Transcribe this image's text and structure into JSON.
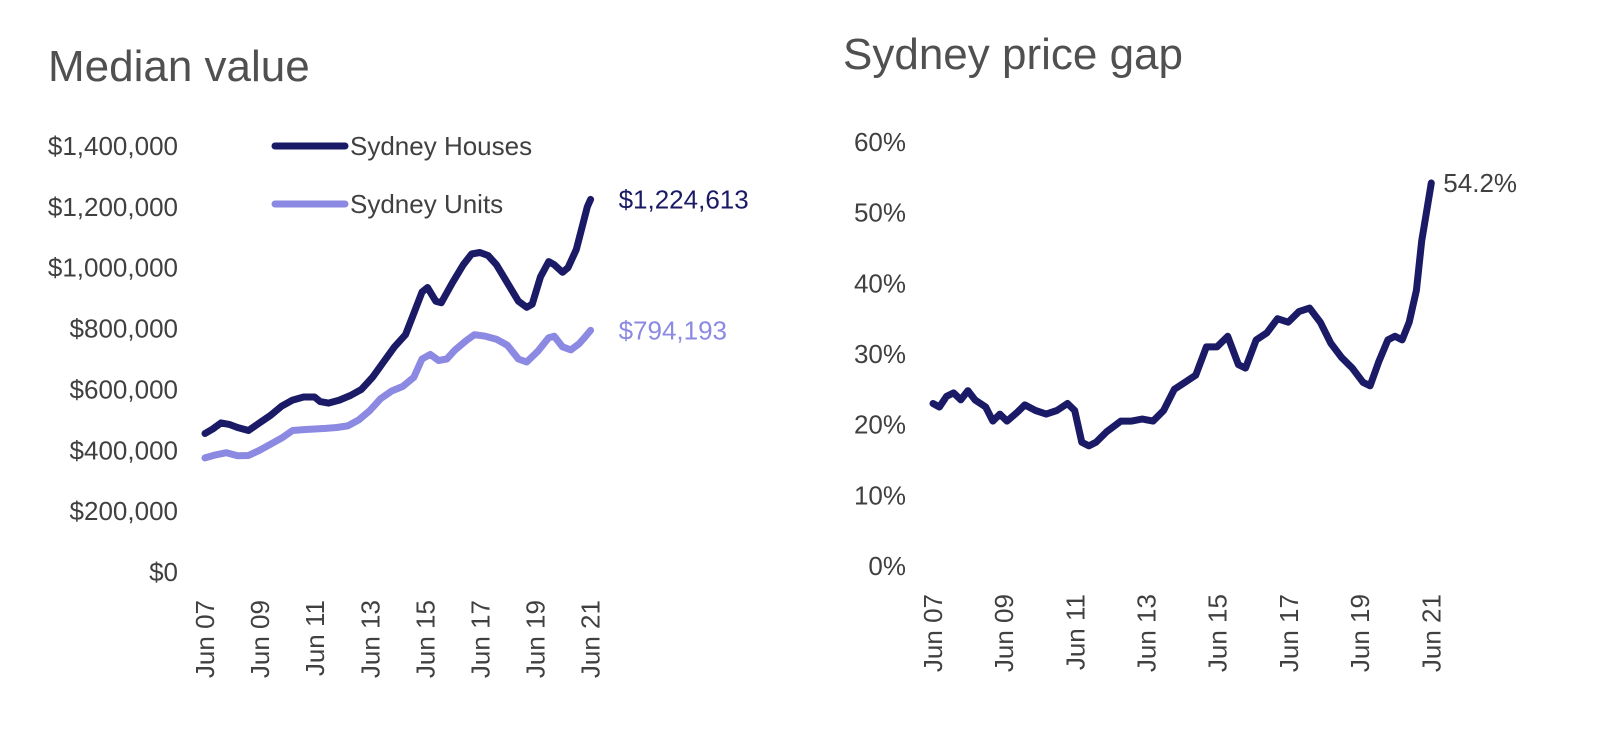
{
  "colors": {
    "houses": "#1a1a66",
    "units": "#8b89e2",
    "gap": "#1a1a66",
    "text": "#404040"
  },
  "chart_data": [
    {
      "type": "line",
      "title": "Median value",
      "ylim": [
        0,
        1400000
      ],
      "yticks": [
        {
          "value": 0,
          "label": "$0"
        },
        {
          "value": 200000,
          "label": "$200,000"
        },
        {
          "value": 400000,
          "label": "$400,000"
        },
        {
          "value": 600000,
          "label": "$600,000"
        },
        {
          "value": 800000,
          "label": "$800,000"
        },
        {
          "value": 1000000,
          "label": "$1,000,000"
        },
        {
          "value": 1200000,
          "label": "$1,200,000"
        },
        {
          "value": 1400000,
          "label": "$1,400,000"
        }
      ],
      "xlim": [
        2007.42,
        2021.58
      ],
      "xticks": [
        {
          "value": 2007.42,
          "label": "Jun 07"
        },
        {
          "value": 2009.42,
          "label": "Jun 09"
        },
        {
          "value": 2011.42,
          "label": "Jun 11"
        },
        {
          "value": 2013.42,
          "label": "Jun 13"
        },
        {
          "value": 2015.42,
          "label": "Jun 15"
        },
        {
          "value": 2017.42,
          "label": "Jun 17"
        },
        {
          "value": 2019.42,
          "label": "Jun 19"
        },
        {
          "value": 2021.42,
          "label": "Jun 21"
        }
      ],
      "legend": "top-center",
      "grid": false,
      "series": [
        {
          "name": "Sydney Houses",
          "color": "#1a1a66",
          "end_label": "$1,224,613",
          "points": [
            [
              2007.42,
              455000
            ],
            [
              2007.7,
              470000
            ],
            [
              2008.0,
              490000
            ],
            [
              2008.3,
              485000
            ],
            [
              2008.6,
              475000
            ],
            [
              2009.0,
              465000
            ],
            [
              2009.4,
              490000
            ],
            [
              2009.8,
              515000
            ],
            [
              2010.2,
              545000
            ],
            [
              2010.6,
              565000
            ],
            [
              2011.0,
              575000
            ],
            [
              2011.4,
              575000
            ],
            [
              2011.6,
              560000
            ],
            [
              2011.9,
              555000
            ],
            [
              2012.3,
              565000
            ],
            [
              2012.7,
              580000
            ],
            [
              2013.1,
              600000
            ],
            [
              2013.5,
              640000
            ],
            [
              2013.9,
              690000
            ],
            [
              2014.3,
              740000
            ],
            [
              2014.7,
              780000
            ],
            [
              2015.0,
              850000
            ],
            [
              2015.3,
              920000
            ],
            [
              2015.5,
              935000
            ],
            [
              2015.8,
              890000
            ],
            [
              2016.0,
              885000
            ],
            [
              2016.4,
              950000
            ],
            [
              2016.8,
              1010000
            ],
            [
              2017.1,
              1045000
            ],
            [
              2017.4,
              1050000
            ],
            [
              2017.7,
              1040000
            ],
            [
              2018.0,
              1010000
            ],
            [
              2018.4,
              950000
            ],
            [
              2018.8,
              890000
            ],
            [
              2019.1,
              870000
            ],
            [
              2019.3,
              880000
            ],
            [
              2019.6,
              970000
            ],
            [
              2019.9,
              1020000
            ],
            [
              2020.1,
              1010000
            ],
            [
              2020.4,
              985000
            ],
            [
              2020.6,
              1000000
            ],
            [
              2020.9,
              1060000
            ],
            [
              2021.1,
              1130000
            ],
            [
              2021.3,
              1200000
            ],
            [
              2021.42,
              1224613
            ]
          ]
        },
        {
          "name": "Sydney Units",
          "color": "#8b89e2",
          "end_label": "$794,193",
          "points": [
            [
              2007.42,
              375000
            ],
            [
              2007.8,
              385000
            ],
            [
              2008.2,
              392000
            ],
            [
              2008.6,
              382000
            ],
            [
              2009.0,
              383000
            ],
            [
              2009.4,
              400000
            ],
            [
              2009.8,
              420000
            ],
            [
              2010.2,
              440000
            ],
            [
              2010.6,
              465000
            ],
            [
              2011.0,
              468000
            ],
            [
              2011.4,
              470000
            ],
            [
              2011.8,
              472000
            ],
            [
              2012.2,
              475000
            ],
            [
              2012.6,
              480000
            ],
            [
              2013.0,
              500000
            ],
            [
              2013.4,
              530000
            ],
            [
              2013.8,
              570000
            ],
            [
              2014.2,
              595000
            ],
            [
              2014.6,
              610000
            ],
            [
              2015.0,
              640000
            ],
            [
              2015.3,
              700000
            ],
            [
              2015.6,
              715000
            ],
            [
              2015.9,
              695000
            ],
            [
              2016.2,
              700000
            ],
            [
              2016.5,
              730000
            ],
            [
              2016.9,
              760000
            ],
            [
              2017.2,
              780000
            ],
            [
              2017.6,
              775000
            ],
            [
              2018.0,
              765000
            ],
            [
              2018.4,
              745000
            ],
            [
              2018.8,
              700000
            ],
            [
              2019.1,
              690000
            ],
            [
              2019.5,
              725000
            ],
            [
              2019.9,
              770000
            ],
            [
              2020.1,
              775000
            ],
            [
              2020.4,
              740000
            ],
            [
              2020.7,
              730000
            ],
            [
              2021.0,
              750000
            ],
            [
              2021.2,
              770000
            ],
            [
              2021.42,
              794193
            ]
          ]
        }
      ]
    },
    {
      "type": "line",
      "title": "Sydney price gap",
      "ylim": [
        0,
        60
      ],
      "yticks": [
        {
          "value": 0,
          "label": "0%"
        },
        {
          "value": 10,
          "label": "10%"
        },
        {
          "value": 20,
          "label": "20%"
        },
        {
          "value": 30,
          "label": "30%"
        },
        {
          "value": 40,
          "label": "40%"
        },
        {
          "value": 50,
          "label": "50%"
        },
        {
          "value": 60,
          "label": "60%"
        }
      ],
      "xlim": [
        2007.42,
        2021.58
      ],
      "xticks": [
        {
          "value": 2007.42,
          "label": "Jun 07"
        },
        {
          "value": 2009.42,
          "label": "Jun 09"
        },
        {
          "value": 2011.42,
          "label": "Jun 11"
        },
        {
          "value": 2013.42,
          "label": "Jun 13"
        },
        {
          "value": 2015.42,
          "label": "Jun 15"
        },
        {
          "value": 2017.42,
          "label": "Jun 17"
        },
        {
          "value": 2019.42,
          "label": "Jun 19"
        },
        {
          "value": 2021.42,
          "label": "Jun 21"
        }
      ],
      "grid": false,
      "series": [
        {
          "color": "#1a1a66",
          "end_label": "54.2%",
          "points": [
            [
              2007.42,
              23.0
            ],
            [
              2007.6,
              22.5
            ],
            [
              2007.8,
              24.0
            ],
            [
              2008.0,
              24.5
            ],
            [
              2008.2,
              23.5
            ],
            [
              2008.4,
              24.8
            ],
            [
              2008.6,
              23.5
            ],
            [
              2008.9,
              22.5
            ],
            [
              2009.1,
              20.5
            ],
            [
              2009.3,
              21.5
            ],
            [
              2009.5,
              20.5
            ],
            [
              2009.8,
              21.8
            ],
            [
              2010.0,
              22.8
            ],
            [
              2010.3,
              22.0
            ],
            [
              2010.6,
              21.5
            ],
            [
              2010.9,
              22.0
            ],
            [
              2011.2,
              23.0
            ],
            [
              2011.4,
              22.0
            ],
            [
              2011.6,
              17.5
            ],
            [
              2011.8,
              17.0
            ],
            [
              2012.0,
              17.5
            ],
            [
              2012.3,
              19.0
            ],
            [
              2012.7,
              20.5
            ],
            [
              2013.0,
              20.5
            ],
            [
              2013.3,
              20.8
            ],
            [
              2013.6,
              20.5
            ],
            [
              2013.9,
              22.0
            ],
            [
              2014.2,
              25.0
            ],
            [
              2014.5,
              26.0
            ],
            [
              2014.8,
              27.0
            ],
            [
              2015.1,
              31.0
            ],
            [
              2015.4,
              31.0
            ],
            [
              2015.7,
              32.5
            ],
            [
              2016.0,
              28.5
            ],
            [
              2016.2,
              28.0
            ],
            [
              2016.5,
              32.0
            ],
            [
              2016.8,
              33.0
            ],
            [
              2017.1,
              35.0
            ],
            [
              2017.4,
              34.5
            ],
            [
              2017.7,
              36.0
            ],
            [
              2018.0,
              36.5
            ],
            [
              2018.3,
              34.5
            ],
            [
              2018.6,
              31.5
            ],
            [
              2018.9,
              29.5
            ],
            [
              2019.2,
              28.0
            ],
            [
              2019.5,
              26.0
            ],
            [
              2019.7,
              25.5
            ],
            [
              2019.95,
              29.0
            ],
            [
              2020.2,
              32.0
            ],
            [
              2020.4,
              32.5
            ],
            [
              2020.6,
              32.0
            ],
            [
              2020.8,
              34.5
            ],
            [
              2021.0,
              39.0
            ],
            [
              2021.15,
              46.0
            ],
            [
              2021.3,
              50.5
            ],
            [
              2021.42,
              54.2
            ]
          ]
        }
      ]
    }
  ]
}
